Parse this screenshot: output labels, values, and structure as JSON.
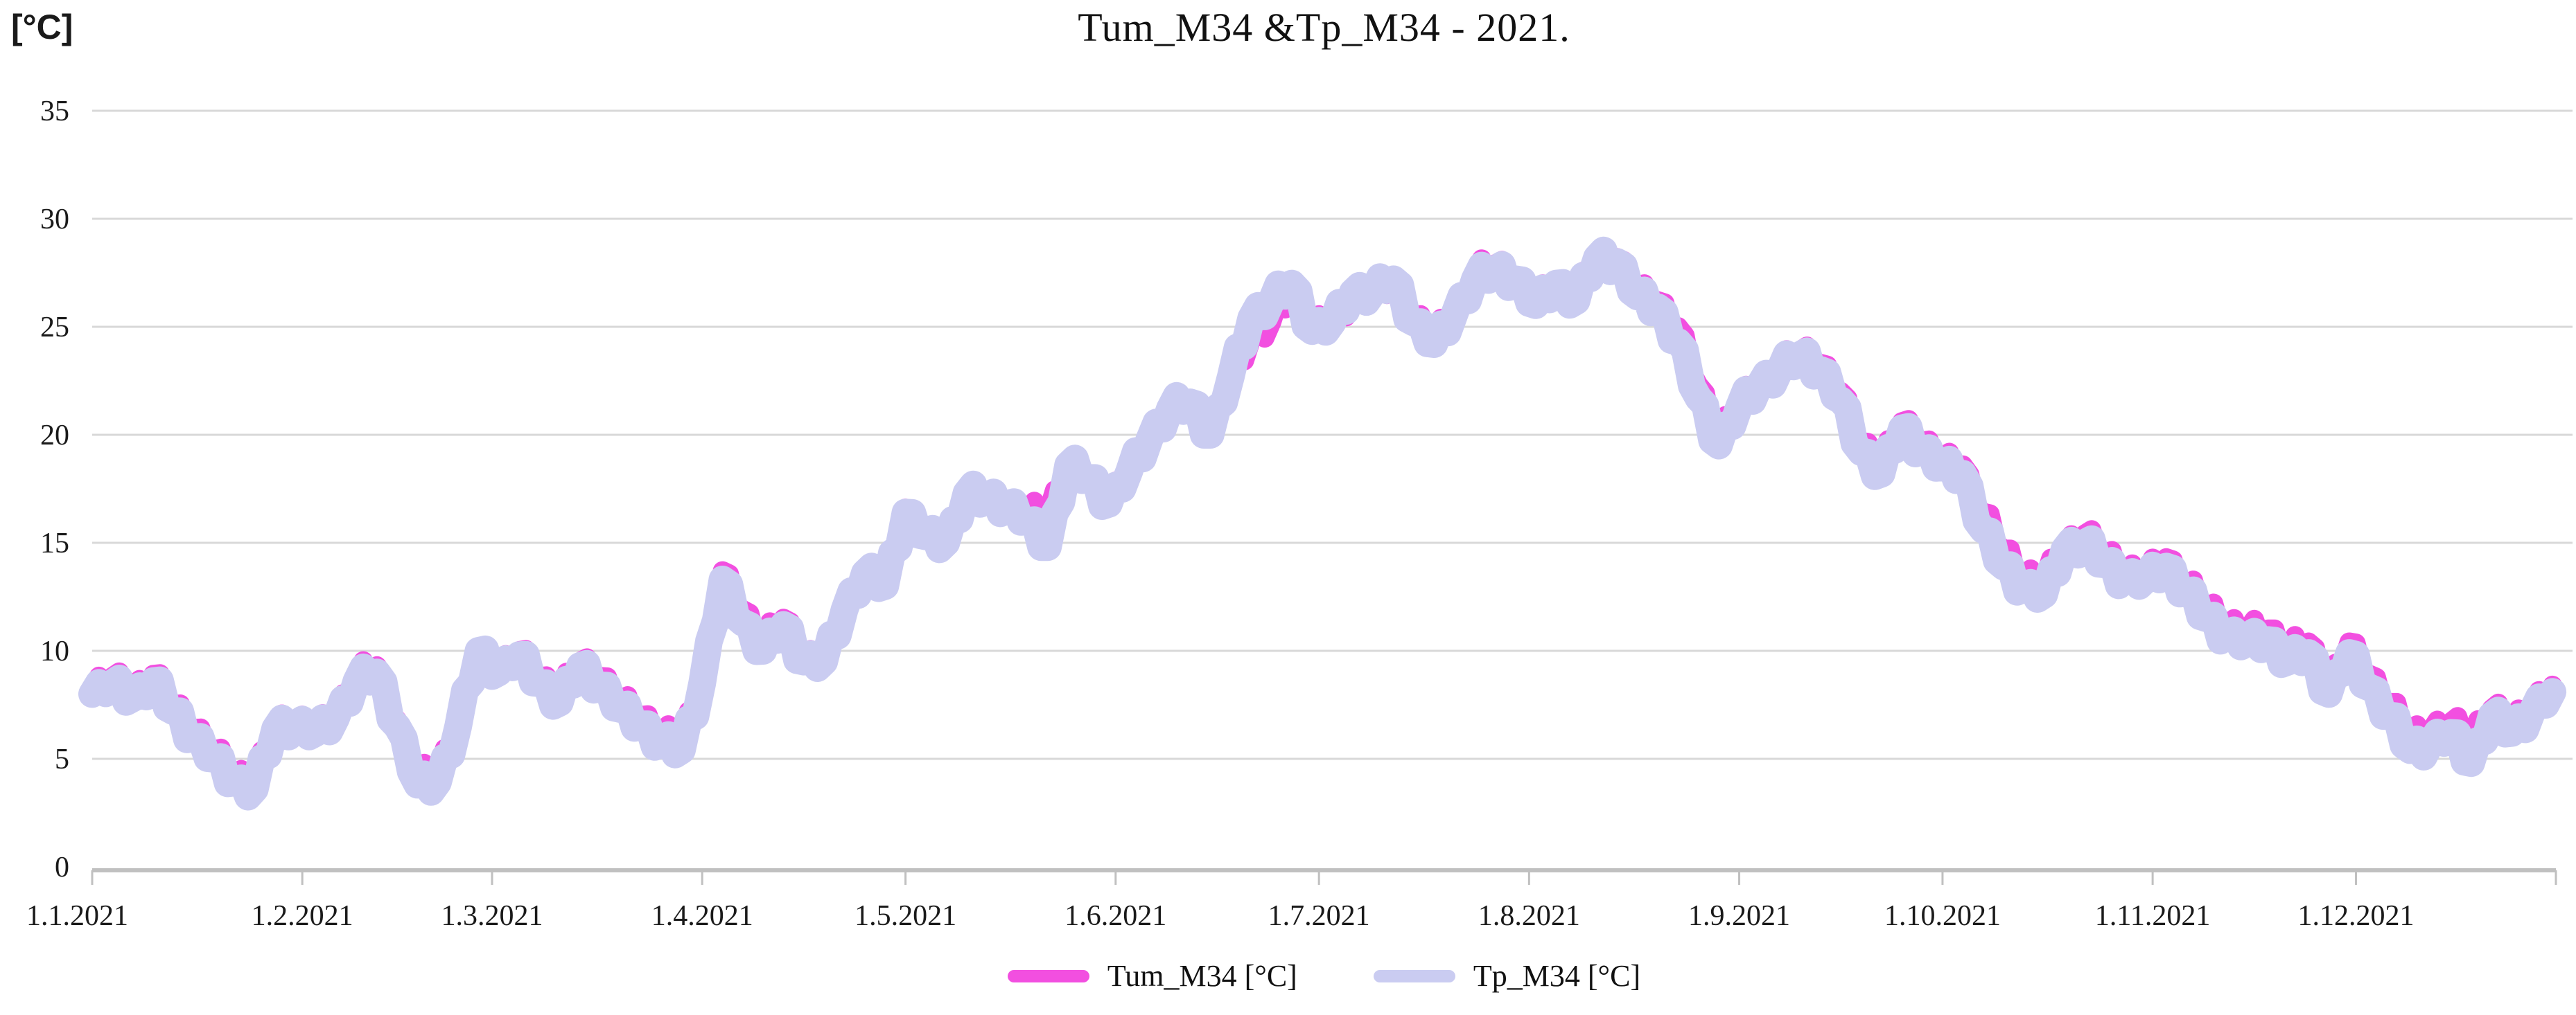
{
  "title": "Tum_M34 &Tp_M34 - 2021.",
  "y_axis": {
    "unit_label": "[°C]",
    "tick_values": [
      0,
      5,
      10,
      15,
      20,
      25,
      30,
      35
    ],
    "min": 0,
    "max": 35
  },
  "x_axis": {
    "tick_labels": [
      "1.1.2021",
      "1.2.2021",
      "1.3.2021",
      "1.4.2021",
      "1.5.2021",
      "1.6.2021",
      "1.7.2021",
      "1.8.2021",
      "1.9.2021",
      "1.10.2021",
      "1.11.2021",
      "1.12.2021"
    ],
    "month_start_day_offsets": [
      0,
      31,
      59,
      90,
      120,
      151,
      181,
      212,
      243,
      273,
      304,
      334
    ]
  },
  "legend": {
    "items": [
      {
        "label": "Tum_M34 [°C]",
        "color": "#F24FE0"
      },
      {
        "label": "Tp_M34 [°C]",
        "color": "#CACCF1"
      }
    ]
  },
  "colors": {
    "gridline": "#D8D8D8",
    "axis": "#C0C0C0",
    "text": "#1a1a1a"
  },
  "chart_data": {
    "type": "line",
    "title": "Tum_M34 &Tp_M34 - 2021.",
    "xlabel": "",
    "ylabel": "[°C]",
    "ylim": [
      0,
      35
    ],
    "grid": "horizontal",
    "legend_position": "bottom-center",
    "x_unit": "days_since_1.1.2021",
    "x_step_days": 3,
    "x_range_days": [
      0,
      363
    ],
    "series": [
      {
        "name": "Tum_M34 [°C]",
        "color": "#F24FE0",
        "values": [
          8.3,
          8.8,
          8.1,
          8.9,
          7.5,
          6.4,
          5.4,
          4.3,
          4.0,
          6.6,
          6.8,
          6.4,
          7.1,
          8.9,
          9.3,
          6.8,
          4.3,
          4.4,
          6.7,
          10.0,
          9.2,
          10.0,
          8.8,
          8.0,
          9.5,
          8.8,
          7.7,
          7.0,
          6.2,
          5.8,
          8.8,
          13.7,
          11.9,
          10.5,
          11.5,
          9.8,
          9.5,
          11.9,
          13.8,
          13.0,
          16.6,
          15.3,
          15.0,
          17.3,
          17.0,
          16.8,
          16.5,
          16.4,
          18.6,
          18.0,
          17.1,
          18.3,
          19.8,
          21.2,
          21.5,
          20.3,
          22.7,
          24.4,
          25.2,
          26.6,
          25.2,
          25.2,
          26.2,
          26.6,
          26.9,
          25.5,
          24.6,
          25.6,
          27.5,
          27.9,
          27.2,
          26.3,
          27.0,
          26.5,
          28.2,
          28.2,
          26.7,
          26.2,
          25.0,
          22.3,
          20.0,
          21.6,
          22.3,
          23.2,
          23.9,
          23.3,
          22.0,
          19.7,
          18.6,
          20.6,
          19.7,
          18.8,
          18.6,
          16.4,
          14.7,
          13.5,
          13.3,
          14.9,
          15.4,
          14.5,
          13.7,
          13.6,
          14.3,
          13.1,
          12.1,
          11.2,
          11.0,
          11.0,
          10.1,
          10.4,
          8.4,
          10.4,
          8.9,
          7.6,
          6.1,
          6.3,
          6.7,
          6.1,
          7.3,
          6.6,
          7.5,
          8.4
        ]
      },
      {
        "name": "Tp_M34 [°C]",
        "color": "#CACCF1",
        "values": [
          8.0,
          8.5,
          7.8,
          8.6,
          7.2,
          6.0,
          5.0,
          3.9,
          3.6,
          6.4,
          6.6,
          6.2,
          6.9,
          8.6,
          9.0,
          6.5,
          3.8,
          3.9,
          6.5,
          10.0,
          9.0,
          9.8,
          8.5,
          7.6,
          9.3,
          8.4,
          7.3,
          6.6,
          5.7,
          5.4,
          8.5,
          13.3,
          11.3,
          10.0,
          11.2,
          9.5,
          9.5,
          11.9,
          13.6,
          13.0,
          16.4,
          15.3,
          15.0,
          17.3,
          17.0,
          16.8,
          16.0,
          14.8,
          18.6,
          18.0,
          16.8,
          18.3,
          19.8,
          21.2,
          21.5,
          20.0,
          22.7,
          25.4,
          26.2,
          27.0,
          24.8,
          25.2,
          26.6,
          26.6,
          27.2,
          25.2,
          24.2,
          25.6,
          27.2,
          27.6,
          27.2,
          26.0,
          27.0,
          26.2,
          28.2,
          28.0,
          26.4,
          25.9,
          24.3,
          21.7,
          19.5,
          21.3,
          22.3,
          23.0,
          23.7,
          23.0,
          21.6,
          19.2,
          18.2,
          20.3,
          19.3,
          18.5,
          18.2,
          15.6,
          13.9,
          12.9,
          12.6,
          14.7,
          15.0,
          14.0,
          13.3,
          13.3,
          13.9,
          12.7,
          11.5,
          10.7,
          10.4,
          10.5,
          9.5,
          9.9,
          8.0,
          9.9,
          8.3,
          7.0,
          5.4,
          5.7,
          6.2,
          4.8,
          7.0,
          6.2,
          7.2,
          8.1
        ]
      }
    ]
  }
}
